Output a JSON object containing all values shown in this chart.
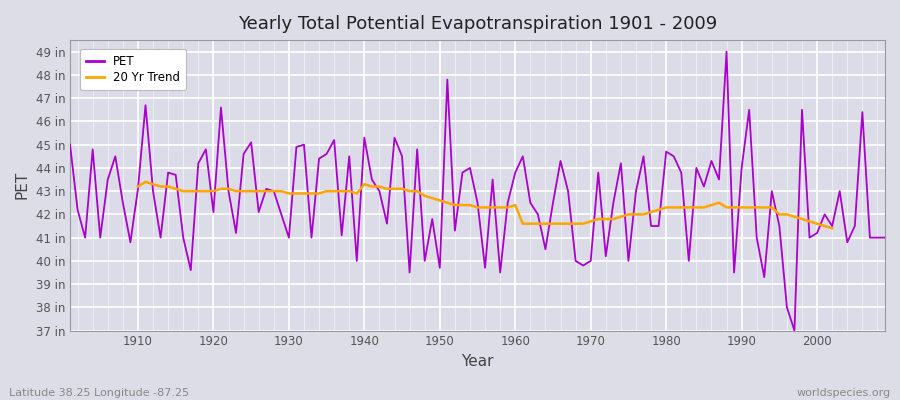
{
  "title": "Yearly Total Potential Evapotranspiration 1901 - 2009",
  "xlabel": "Year",
  "ylabel": "PET",
  "subtitle": "Latitude 38.25 Longitude -87.25",
  "watermark": "worldspecies.org",
  "pet_color": "#AA00CC",
  "trend_color": "#FFA500",
  "fig_bg_color": "#DDDDE8",
  "plot_bg_color": "#DCDCE8",
  "ylim": [
    37,
    49.5
  ],
  "yticks": [
    37,
    38,
    39,
    40,
    41,
    42,
    43,
    44,
    45,
    46,
    47,
    48,
    49
  ],
  "ytick_labels": [
    "37 in",
    "38 in",
    "39 in",
    "40 in",
    "41 in",
    "42 in",
    "43 in",
    "44 in",
    "45 in",
    "46 in",
    "47 in",
    "48 in",
    "49 in"
  ],
  "xticks": [
    1910,
    1920,
    1930,
    1940,
    1950,
    1960,
    1970,
    1980,
    1990,
    2000
  ],
  "years": [
    1901,
    1902,
    1903,
    1904,
    1905,
    1906,
    1907,
    1908,
    1909,
    1910,
    1911,
    1912,
    1913,
    1914,
    1915,
    1916,
    1917,
    1918,
    1919,
    1920,
    1921,
    1922,
    1923,
    1924,
    1925,
    1926,
    1927,
    1928,
    1929,
    1930,
    1931,
    1932,
    1933,
    1934,
    1935,
    1936,
    1937,
    1938,
    1939,
    1940,
    1941,
    1942,
    1943,
    1944,
    1945,
    1946,
    1947,
    1948,
    1949,
    1950,
    1951,
    1952,
    1953,
    1954,
    1955,
    1956,
    1957,
    1958,
    1959,
    1960,
    1961,
    1962,
    1963,
    1964,
    1965,
    1966,
    1967,
    1968,
    1969,
    1970,
    1971,
    1972,
    1973,
    1974,
    1975,
    1976,
    1977,
    1978,
    1979,
    1980,
    1981,
    1982,
    1983,
    1984,
    1985,
    1986,
    1987,
    1988,
    1989,
    1990,
    1991,
    1992,
    1993,
    1994,
    1995,
    1996,
    1997,
    1998,
    1999,
    2000,
    2001,
    2002,
    2003,
    2004,
    2005,
    2006,
    2007,
    2008,
    2009
  ],
  "pet_values": [
    45.0,
    42.2,
    41.0,
    44.8,
    41.0,
    43.5,
    44.5,
    42.5,
    40.8,
    43.1,
    46.7,
    43.0,
    41.0,
    43.8,
    43.7,
    41.0,
    39.6,
    44.2,
    44.8,
    42.1,
    46.6,
    43.0,
    41.2,
    44.6,
    45.1,
    42.1,
    43.1,
    43.0,
    42.0,
    41.0,
    44.9,
    45.0,
    41.0,
    44.4,
    44.6,
    45.2,
    41.1,
    44.5,
    40.0,
    45.3,
    43.5,
    43.0,
    41.6,
    45.3,
    44.5,
    39.5,
    44.8,
    40.0,
    41.8,
    39.7,
    47.8,
    41.3,
    43.8,
    44.0,
    42.5,
    39.7,
    43.5,
    39.5,
    42.5,
    43.8,
    44.5,
    42.5,
    42.0,
    40.5,
    42.5,
    44.3,
    43.0,
    40.0,
    39.8,
    40.0,
    43.8,
    40.2,
    42.5,
    44.2,
    40.0,
    43.0,
    44.5,
    41.5,
    41.5,
    44.7,
    44.5,
    43.8,
    40.0,
    44.0,
    43.2,
    44.3,
    43.5,
    49.0,
    39.5,
    44.0,
    46.5,
    41.0,
    39.3,
    43.0,
    41.5,
    38.0,
    37.0,
    46.5,
    41.0,
    41.2,
    42.0,
    41.5,
    43.0,
    40.8,
    41.5,
    46.4,
    41.0,
    41.0,
    41.0
  ],
  "trend_values": [
    null,
    null,
    null,
    null,
    null,
    null,
    null,
    null,
    null,
    43.2,
    43.4,
    43.3,
    43.2,
    43.2,
    43.1,
    43.0,
    43.0,
    43.0,
    43.0,
    43.0,
    43.1,
    43.1,
    43.0,
    43.0,
    43.0,
    43.0,
    43.0,
    43.0,
    43.0,
    42.9,
    42.9,
    42.9,
    42.9,
    42.9,
    43.0,
    43.0,
    43.0,
    43.0,
    42.9,
    43.3,
    43.2,
    43.2,
    43.1,
    43.1,
    43.1,
    43.0,
    43.0,
    42.8,
    42.7,
    42.6,
    42.5,
    42.4,
    42.4,
    42.4,
    42.3,
    42.3,
    42.3,
    42.3,
    42.3,
    42.4,
    41.6,
    41.6,
    41.6,
    41.6,
    41.6,
    41.6,
    41.6,
    41.6,
    41.6,
    41.7,
    41.8,
    41.8,
    41.8,
    41.9,
    42.0,
    42.0,
    42.0,
    42.1,
    42.2,
    42.3,
    42.3,
    42.3,
    42.3,
    42.3,
    42.3,
    42.4,
    42.5,
    42.3,
    42.3,
    42.3,
    42.3,
    42.3,
    42.3,
    42.3,
    42.0,
    42.0,
    41.9,
    41.8,
    41.7,
    41.6,
    41.5,
    41.4,
    null,
    null,
    null,
    null,
    null,
    null
  ]
}
